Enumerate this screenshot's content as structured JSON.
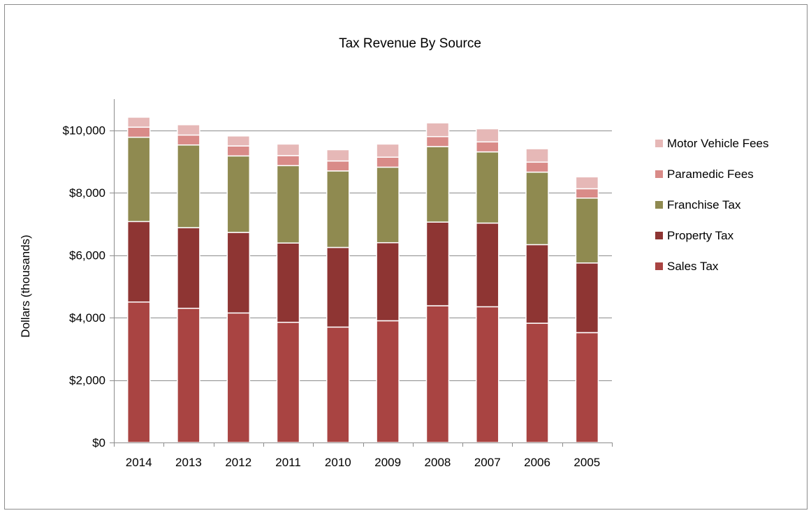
{
  "chart_data": {
    "type": "bar",
    "stacked": true,
    "title": "Tax Revenue By Source",
    "xlabel": "",
    "ylabel": "Dollars (thousands)",
    "ylim": [
      0,
      11000
    ],
    "yticks": [
      0,
      2000,
      4000,
      6000,
      8000,
      10000
    ],
    "ytick_labels": [
      "$0",
      "$2,000",
      "$4,000",
      "$6,000",
      "$8,000",
      "$10,000"
    ],
    "grid": true,
    "legend_position": "right",
    "categories": [
      "2014",
      "2013",
      "2012",
      "2011",
      "2010",
      "2009",
      "2008",
      "2007",
      "2006",
      "2005"
    ],
    "series": [
      {
        "name": "Sales Tax",
        "color": "#a94442",
        "values": [
          4500,
          4300,
          4150,
          3850,
          3700,
          3900,
          4380,
          4350,
          3820,
          3520
        ]
      },
      {
        "name": "Property Tax",
        "color": "#8e3533",
        "values": [
          2580,
          2580,
          2580,
          2540,
          2550,
          2500,
          2680,
          2680,
          2520,
          2230
        ]
      },
      {
        "name": "Franchise Tax",
        "color": "#8f8a50",
        "values": [
          2700,
          2650,
          2450,
          2480,
          2450,
          2420,
          2420,
          2280,
          2320,
          2080
        ]
      },
      {
        "name": "Paramedic Fees",
        "color": "#d98b88",
        "values": [
          320,
          320,
          320,
          320,
          320,
          320,
          320,
          320,
          320,
          300
        ]
      },
      {
        "name": "Motor Vehicle Fees",
        "color": "#e6b8b7",
        "values": [
          320,
          330,
          320,
          370,
          360,
          420,
          440,
          420,
          430,
          380
        ]
      }
    ]
  }
}
